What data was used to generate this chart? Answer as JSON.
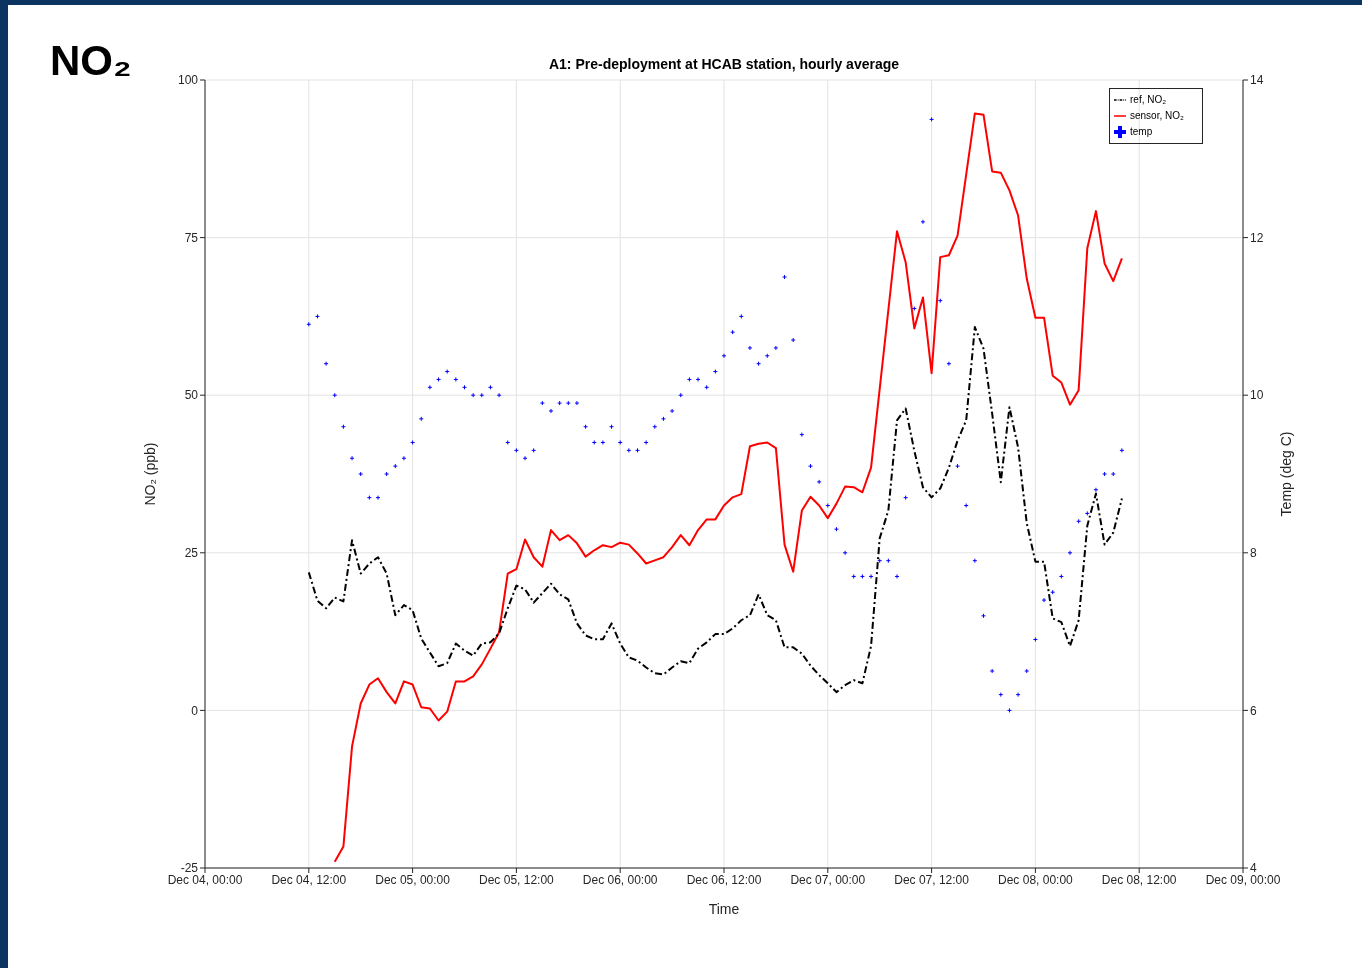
{
  "chart_data": {
    "type": "line",
    "title": "NO₂",
    "subtitle": "A1: Pre-deployment at HCAB station, hourly average",
    "xlabel": "Time",
    "ylabel": "NO₂ (ppb)",
    "y2label": "Temp (deg C)",
    "xlim": [
      "--12-04T00:00",
      "--12-09T00:00"
    ],
    "xticks": [
      {
        "value": "--12-04T00:00",
        "label": "Dec 04, 00:00"
      },
      {
        "value": "--12-04T12:00",
        "label": "Dec 04, 12:00"
      },
      {
        "value": "--12-05T00:00",
        "label": "Dec 05, 00:00"
      },
      {
        "value": "--12-05T12:00",
        "label": "Dec 05, 12:00"
      },
      {
        "value": "--12-06T00:00",
        "label": "Dec 06, 00:00"
      },
      {
        "value": "--12-06T12:00",
        "label": "Dec 06, 12:00"
      },
      {
        "value": "--12-07T00:00",
        "label": "Dec 07, 00:00"
      },
      {
        "value": "--12-07T12:00",
        "label": "Dec 07, 12:00"
      },
      {
        "value": "--12-08T00:00",
        "label": "Dec 08, 00:00"
      },
      {
        "value": "--12-08T12:00",
        "label": "Dec 08, 12:00"
      },
      {
        "value": "--12-09T00:00",
        "label": "Dec 09, 00:00"
      }
    ],
    "ylim": [
      -25,
      100
    ],
    "yticks": [
      -25,
      0,
      25,
      50,
      75,
      100
    ],
    "y2lim": [
      4,
      14
    ],
    "y2ticks": [
      4,
      6,
      8,
      10,
      12,
      14
    ],
    "grid": true,
    "legend": "top right",
    "series": [
      {
        "name": "sensor, NO₂",
        "color": "#ff0000",
        "line_style": "solid",
        "x": [
          "--12-04T15:00",
          "--12-04T16:00",
          "--12-04T17:00",
          "--12-04T18:00",
          "--12-04T19:00",
          "--12-04T20:00",
          "--12-04T21:00",
          "--12-04T22:00",
          "--12-04T23:00",
          "--12-05T00:00",
          "--12-05T01:00",
          "--12-05T02:00",
          "--12-05T03:00",
          "--12-05T04:00",
          "--12-05T05:00",
          "--12-05T06:00",
          "--12-05T07:00",
          "--12-05T08:00",
          "--12-05T09:00",
          "--12-05T10:00",
          "--12-05T11:00",
          "--12-05T12:00",
          "--12-05T13:00",
          "--12-05T14:00",
          "--12-05T15:00",
          "--12-05T16:00",
          "--12-05T17:00",
          "--12-05T18:00",
          "--12-05T19:00",
          "--12-05T20:00",
          "--12-05T21:00",
          "--12-05T22:00",
          "--12-05T23:00",
          "--12-06T00:00",
          "--12-06T01:00",
          "--12-06T02:00",
          "--12-06T03:00",
          "--12-06T04:00",
          "--12-06T05:00",
          "--12-06T06:00",
          "--12-06T07:00",
          "--12-06T08:00",
          "--12-06T09:00",
          "--12-06T10:00",
          "--12-06T11:00",
          "--12-06T12:00",
          "--12-06T13:00",
          "--12-06T14:00",
          "--12-06T15:00",
          "--12-06T16:00",
          "--12-06T17:00",
          "--12-06T18:00",
          "--12-06T19:00",
          "--12-06T20:00",
          "--12-06T21:00",
          "--12-06T22:00",
          "--12-06T23:00",
          "--12-07T00:00",
          "--12-07T01:00",
          "--12-07T02:00",
          "--12-07T03:00",
          "--12-07T04:00",
          "--12-07T05:00",
          "--12-07T08:00",
          "--12-07T09:00",
          "--12-07T10:00",
          "--12-07T11:00",
          "--12-07T12:00",
          "--12-07T13:00",
          "--12-07T14:00",
          "--12-07T15:00",
          "--12-07T17:00",
          "--12-07T18:00",
          "--12-07T19:00",
          "--12-07T20:00",
          "--12-07T21:00",
          "--12-07T22:00",
          "--12-07T23:00",
          "--12-08T00:00",
          "--12-08T01:00",
          "--12-08T02:00",
          "--12-08T03:00",
          "--12-08T04:00",
          "--12-08T05:00",
          "--12-08T06:00",
          "--12-08T07:00",
          "--12-08T08:00",
          "--12-08T09:00",
          "--12-08T10:00"
        ],
        "values": [
          -24,
          -21.6,
          -5.7,
          1.1,
          4.1,
          5.1,
          2.9,
          1.1,
          4.6,
          4.1,
          0.5,
          0.3,
          -1.6,
          -0.2,
          4.6,
          4.6,
          5.4,
          7.3,
          9.8,
          12.4,
          21.7,
          22.4,
          27.1,
          24.3,
          22.8,
          28.6,
          27,
          27.8,
          26.5,
          24.4,
          25.4,
          26.2,
          25.9,
          26.6,
          26.3,
          24.9,
          23.3,
          23.8,
          24.3,
          25.9,
          27.8,
          26.2,
          28.6,
          30.3,
          30.3,
          32.5,
          33.8,
          34.3,
          41.9,
          42.3,
          42.5,
          41.6,
          26.3,
          22,
          31.7,
          33.9,
          32.5,
          30.5,
          32.8,
          35.5,
          35.4,
          34.6,
          38.5,
          76,
          71.1,
          60.6,
          65.5,
          53.5,
          71.9,
          72.2,
          75.3,
          94.7,
          94.5,
          85.5,
          85.3,
          82.5,
          78.5,
          68.5,
          62.3,
          62.3,
          53.1,
          52,
          48.5,
          50.8,
          73.3,
          79.2,
          70.9,
          68.1,
          71.7
        ]
      },
      {
        "name": "ref, NO₂",
        "color": "#000000",
        "line_style": "dashed",
        "x": [
          "--12-04T12:00",
          "--12-04T13:00",
          "--12-04T14:00",
          "--12-04T15:00",
          "--12-04T16:00",
          "--12-04T17:00",
          "--12-04T18:00",
          "--12-04T19:00",
          "--12-04T20:00",
          "--12-04T21:00",
          "--12-04T22:00",
          "--12-04T23:00",
          "--12-05T00:00",
          "--12-05T01:00",
          "--12-05T02:00",
          "--12-05T03:00",
          "--12-05T04:00",
          "--12-05T05:00",
          "--12-05T06:00",
          "--12-05T07:00",
          "--12-05T08:00",
          "--12-05T09:00",
          "--12-05T10:00",
          "--12-05T11:00",
          "--12-05T12:00",
          "--12-05T13:00",
          "--12-05T14:00",
          "--12-05T15:00",
          "--12-05T16:00",
          "--12-05T17:00",
          "--12-05T18:00",
          "--12-05T19:00",
          "--12-05T20:00",
          "--12-05T21:00",
          "--12-05T22:00",
          "--12-05T23:00",
          "--12-06T00:00",
          "--12-06T01:00",
          "--12-06T02:00",
          "--12-06T03:00",
          "--12-06T04:00",
          "--12-06T05:00",
          "--12-06T06:00",
          "--12-06T07:00",
          "--12-06T08:00",
          "--12-06T09:00",
          "--12-06T10:00",
          "--12-06T11:00",
          "--12-06T12:00",
          "--12-06T13:00",
          "--12-06T14:00",
          "--12-06T15:00",
          "--12-06T16:00",
          "--12-06T17:00",
          "--12-06T18:00",
          "--12-06T19:00",
          "--12-06T20:00",
          "--12-06T21:00",
          "--12-06T22:00",
          "--12-06T23:00",
          "--12-07T00:00",
          "--12-07T01:00",
          "--12-07T02:00",
          "--12-07T03:00",
          "--12-07T04:00",
          "--12-07T05:00",
          "--12-07T06:00",
          "--12-07T07:00",
          "--12-07T08:00",
          "--12-07T09:00",
          "--12-07T10:00",
          "--12-07T11:00",
          "--12-07T12:00",
          "--12-07T13:00",
          "--12-07T14:00",
          "--12-07T15:00",
          "--12-07T16:00",
          "--12-07T17:00",
          "--12-07T18:00",
          "--12-07T19:00",
          "--12-07T20:00",
          "--12-07T21:00",
          "--12-07T22:00",
          "--12-07T23:00",
          "--12-08T00:00",
          "--12-08T01:00",
          "--12-08T02:00",
          "--12-08T03:00",
          "--12-08T04:00",
          "--12-08T05:00",
          "--12-08T06:00",
          "--12-08T07:00",
          "--12-08T08:00",
          "--12-08T09:00",
          "--12-08T10:00"
        ],
        "values": [
          21.9,
          17.4,
          16.2,
          17.9,
          17.3,
          27,
          21.7,
          23.3,
          24.3,
          21.7,
          15.1,
          16.7,
          15.9,
          11.4,
          9.2,
          7,
          7.5,
          10.6,
          9.5,
          8.7,
          10.6,
          10.8,
          12.2,
          16.2,
          19.8,
          19.2,
          17.1,
          18.6,
          20.1,
          18.4,
          17.6,
          13.8,
          11.9,
          11.3,
          11.3,
          13.8,
          10.6,
          8.4,
          7.9,
          6.8,
          5.9,
          5.7,
          6.8,
          7.8,
          7.5,
          9.8,
          10.8,
          12.1,
          12.1,
          13,
          14.3,
          15.1,
          18.4,
          15.1,
          14.3,
          10,
          10,
          9,
          7.1,
          5.6,
          4.3,
          2.9,
          4,
          4.8,
          4.3,
          10.2,
          27.3,
          31.7,
          46,
          47.9,
          41.2,
          35.4,
          33.8,
          35.2,
          38.5,
          42.8,
          46,
          60.8,
          57.4,
          47.1,
          36.2,
          48.1,
          41.7,
          29.7,
          23.6,
          23.6,
          14.6,
          14,
          10.2,
          14.3,
          29.3,
          34.4,
          26.3,
          28.2,
          33.6
        ]
      },
      {
        "name": "temp",
        "type": "scatter",
        "axis": "y2",
        "marker": "cross",
        "color": "#0000ff",
        "x": [
          "--12-04T12:00",
          "--12-04T13:00",
          "--12-04T14:00",
          "--12-04T15:00",
          "--12-04T16:00",
          "--12-04T17:00",
          "--12-04T18:00",
          "--12-04T19:00",
          "--12-04T20:00",
          "--12-04T21:00",
          "--12-04T22:00",
          "--12-04T23:00",
          "--12-05T00:00",
          "--12-05T01:00",
          "--12-05T02:00",
          "--12-05T03:00",
          "--12-05T04:00",
          "--12-05T05:00",
          "--12-05T06:00",
          "--12-05T07:00",
          "--12-05T08:00",
          "--12-05T09:00",
          "--12-05T10:00",
          "--12-05T11:00",
          "--12-05T12:00",
          "--12-05T13:00",
          "--12-05T14:00",
          "--12-05T15:00",
          "--12-05T16:00",
          "--12-05T17:00",
          "--12-05T18:00",
          "--12-05T19:00",
          "--12-05T20:00",
          "--12-05T21:00",
          "--12-05T22:00",
          "--12-05T23:00",
          "--12-06T00:00",
          "--12-06T01:00",
          "--12-06T02:00",
          "--12-06T03:00",
          "--12-06T04:00",
          "--12-06T05:00",
          "--12-06T06:00",
          "--12-06T07:00",
          "--12-06T08:00",
          "--12-06T09:00",
          "--12-06T10:00",
          "--12-06T11:00",
          "--12-06T12:00",
          "--12-06T13:00",
          "--12-06T14:00",
          "--12-06T15:00",
          "--12-06T16:00",
          "--12-06T17:00",
          "--12-06T18:00",
          "--12-06T19:00",
          "--12-06T20:00",
          "--12-06T21:00",
          "--12-06T22:00",
          "--12-06T23:00",
          "--12-07T00:00",
          "--12-07T01:00",
          "--12-07T02:00",
          "--12-07T03:00",
          "--12-07T04:00",
          "--12-07T05:00",
          "--12-07T06:00",
          "--12-07T07:00",
          "--12-07T08:00",
          "--12-07T09:00",
          "--12-07T10:00",
          "--12-07T11:00",
          "--12-07T12:00",
          "--12-07T13:00",
          "--12-07T14:00",
          "--12-07T15:00",
          "--12-07T16:00",
          "--12-07T17:00",
          "--12-07T18:00",
          "--12-07T19:00",
          "--12-07T20:00",
          "--12-07T21:00",
          "--12-07T22:00",
          "--12-07T23:00",
          "--12-08T00:00",
          "--12-08T01:00",
          "--12-08T02:00",
          "--12-08T03:00",
          "--12-08T04:00",
          "--12-08T05:00",
          "--12-08T06:00",
          "--12-08T07:00",
          "--12-08T08:00",
          "--12-08T09:00",
          "--12-08T10:00"
        ],
        "values": [
          10.9,
          11,
          10.4,
          10,
          9.6,
          9.2,
          9,
          8.7,
          8.7,
          9,
          9.1,
          9.2,
          9.4,
          9.7,
          10.1,
          10.2,
          10.3,
          10.2,
          10.1,
          10,
          10,
          10.1,
          10,
          9.4,
          9.3,
          9.2,
          9.3,
          9.9,
          9.8,
          9.9,
          9.9,
          9.9,
          9.6,
          9.4,
          9.4,
          9.6,
          9.4,
          9.3,
          9.3,
          9.4,
          9.6,
          9.7,
          9.8,
          10,
          10.2,
          10.2,
          10.1,
          10.3,
          10.5,
          10.8,
          11,
          10.6,
          10.4,
          10.5,
          10.6,
          11.5,
          10.7,
          9.5,
          9.1,
          8.9,
          8.6,
          8.3,
          8,
          7.7,
          7.7,
          7.7,
          7.9,
          7.9,
          7.7,
          8.7,
          11.1,
          12.2,
          13.5,
          11.2,
          10.4,
          9.1,
          8.6,
          7.9,
          7.2,
          6.5,
          6.2,
          6,
          6.2,
          6.5,
          6.9,
          7.4,
          7.5,
          7.7,
          8,
          8.4,
          8.5,
          8.8,
          9,
          9,
          9.3
        ]
      }
    ]
  }
}
